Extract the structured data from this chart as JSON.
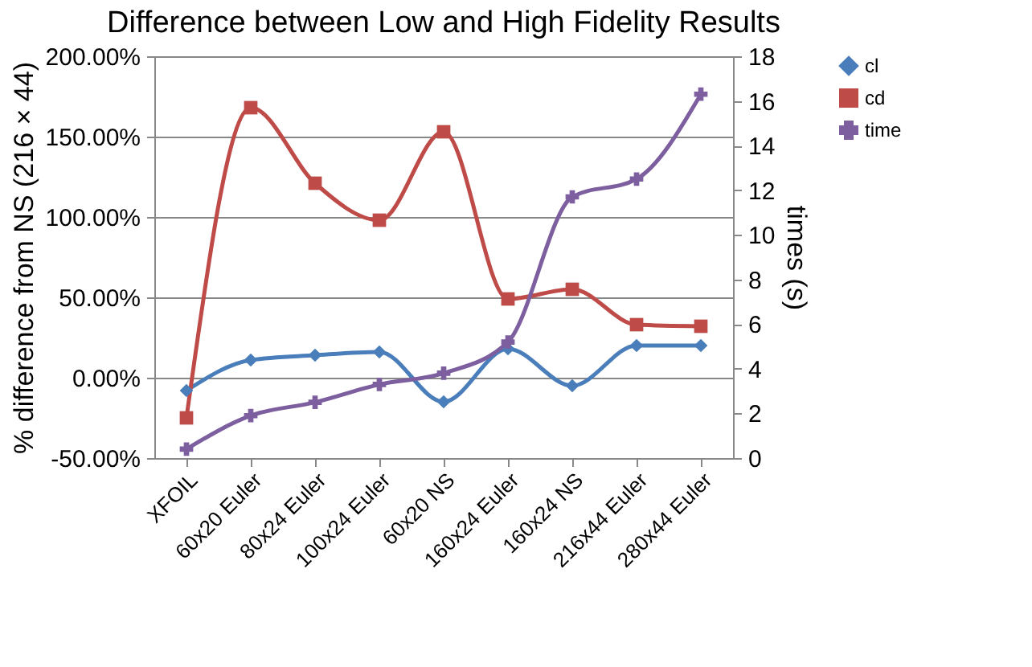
{
  "chart_data": {
    "type": "line",
    "title": "Difference between Low and High Fidelity Results",
    "categories": [
      "XFOIL",
      "60x20 Euler",
      "80x24 Euler",
      "100x24 Euler",
      "60x20 NS",
      "160x24 Euler",
      "160x24 NS",
      "216x44 Euler",
      "280x44 Euler"
    ],
    "ylabel": "% difference from NS (216 × 44)",
    "y2label": "times (s)",
    "ylim": [
      -50,
      200
    ],
    "yticks": [
      {
        "value": -50,
        "label": "-50.00%"
      },
      {
        "value": 0,
        "label": "0.00%"
      },
      {
        "value": 50,
        "label": "50.00%"
      },
      {
        "value": 100,
        "label": "100.00%"
      },
      {
        "value": 150,
        "label": "150.00%"
      },
      {
        "value": 200,
        "label": "200.00%"
      }
    ],
    "y2lim": [
      0,
      18
    ],
    "y2ticks": [
      0,
      2,
      4,
      6,
      8,
      10,
      12,
      14,
      16,
      18
    ],
    "grid": "y",
    "legend": "right",
    "line_style": "solid",
    "series": [
      {
        "name": "cl",
        "color": "#4a7ebb",
        "marker": "diamond",
        "values": [
          -8,
          11,
          14,
          16,
          -15,
          18,
          -5,
          20,
          20
        ]
      },
      {
        "name": "cd",
        "color": "#be4b48",
        "marker": "square",
        "values": [
          -25,
          168,
          121,
          98,
          153,
          49,
          55,
          33,
          32
        ]
      },
      {
        "name": "time",
        "color": "#7d5fa0",
        "marker": "cross",
        "axis": "y2",
        "values": [
          0.4,
          1.9,
          2.5,
          3.3,
          3.8,
          5.2,
          11.7,
          12.5,
          16.3
        ]
      }
    ]
  }
}
